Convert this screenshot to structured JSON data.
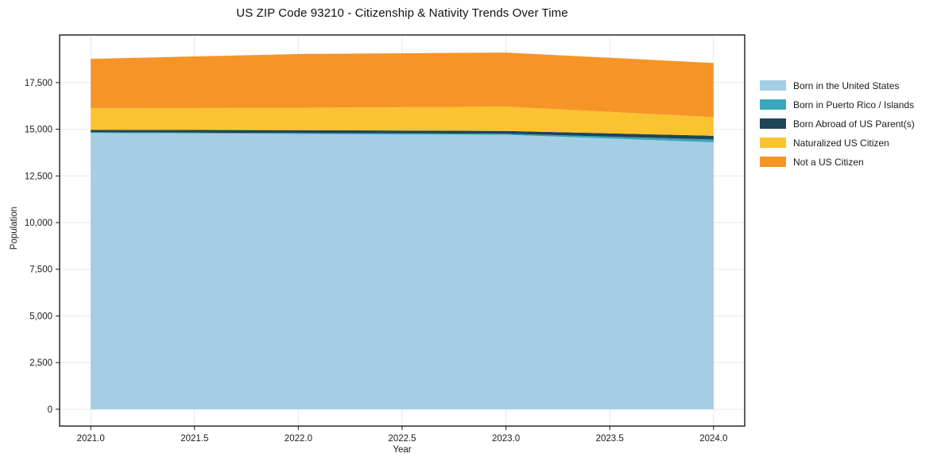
{
  "figure": {
    "kind": "stacked-area-chart"
  },
  "chart_data": {
    "type": "area",
    "stacked": true,
    "title": "US ZIP Code 93210 - Citizenship & Nativity Trends Over Time",
    "xlabel": "Year",
    "ylabel": "Population",
    "x": [
      2021,
      2022,
      2023,
      2024
    ],
    "series": [
      {
        "name": "Born in the United States",
        "color": "#a5cee4",
        "values": [
          14800,
          14750,
          14700,
          14300
        ]
      },
      {
        "name": "Born in Puerto Rico / Islands",
        "color": "#38a7bd",
        "values": [
          40,
          50,
          60,
          150
        ]
      },
      {
        "name": "Born Abroad of US Parent(s)",
        "color": "#1f4557",
        "values": [
          130,
          150,
          150,
          200
        ]
      },
      {
        "name": "Naturalized US Citizen",
        "color": "#fcc330",
        "values": [
          1150,
          1200,
          1300,
          1000
        ]
      },
      {
        "name": "Not a US Citizen",
        "color": "#f79428",
        "values": [
          2650,
          2880,
          2900,
          2900
        ]
      }
    ],
    "totals": [
      18770,
      19030,
      19110,
      18550
    ],
    "xlim": [
      2020.85,
      2024.15
    ],
    "ylim": [
      -900,
      20050
    ],
    "xticks": [
      "2021.0",
      "2021.5",
      "2022.0",
      "2022.5",
      "2023.0",
      "2023.5",
      "2024.0"
    ],
    "xtick_values": [
      2021,
      2021.5,
      2022,
      2022.5,
      2023,
      2023.5,
      2024
    ],
    "yticks": [
      "0",
      "2,500",
      "5,000",
      "7,500",
      "10,000",
      "12,500",
      "15,000",
      "17,500"
    ],
    "ytick_values": [
      0,
      2500,
      5000,
      7500,
      10000,
      12500,
      15000,
      17500
    ],
    "grid": true,
    "legend_position": "outside-right",
    "colors": {
      "grid": "#e7e7e7",
      "spine": "#1a1a1a",
      "tick_label": "#1a1a1a",
      "background": "#ffffff"
    }
  }
}
